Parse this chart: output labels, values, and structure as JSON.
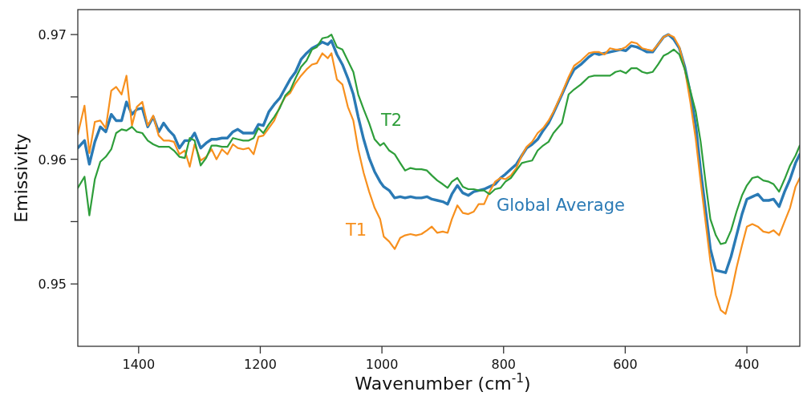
{
  "chart_data": {
    "type": "line",
    "xlabel": "Wavenumber (cm$^{-1}$)",
    "ylabel": "Emissivity",
    "xlim": [
      1500,
      313
    ],
    "ylim": [
      0.945,
      0.972
    ],
    "xticks": [
      1400,
      1200,
      1000,
      800,
      600,
      400
    ],
    "yticks": [
      0.95,
      {
        "value": 0.955,
        "label": null
      },
      0.96,
      {
        "value": 0.965,
        "label": null
      },
      0.97
    ],
    "grid": false,
    "legend": false,
    "marker": "none",
    "line_style": "solid",
    "x": [
      1500,
      1489,
      1481,
      1472,
      1463,
      1454,
      1445,
      1437,
      1428,
      1420,
      1411,
      1403,
      1394,
      1385,
      1376,
      1367,
      1359,
      1350,
      1342,
      1333,
      1324,
      1316,
      1308,
      1298,
      1289,
      1280,
      1272,
      1263,
      1254,
      1245,
      1237,
      1228,
      1219,
      1211,
      1203,
      1195,
      1186,
      1177,
      1168,
      1159,
      1151,
      1142,
      1133,
      1124,
      1115,
      1107,
      1098,
      1089,
      1083,
      1074,
      1065,
      1056,
      1047,
      1039,
      1030,
      1021,
      1012,
      1003,
      997,
      988,
      979,
      970,
      962,
      953,
      944,
      935,
      926,
      918,
      909,
      900,
      892,
      885,
      876,
      867,
      858,
      849,
      841,
      832,
      823,
      814,
      805,
      797,
      788,
      779,
      770,
      762,
      753,
      744,
      735,
      726,
      718,
      704,
      693,
      684,
      673,
      660,
      651,
      643,
      634,
      625,
      616,
      608,
      599,
      590,
      581,
      572,
      564,
      555,
      546,
      537,
      529,
      520,
      511,
      502,
      493,
      484,
      476,
      467,
      460,
      451,
      443,
      435,
      426,
      417,
      408,
      400,
      391,
      382,
      373,
      364,
      356,
      347,
      338,
      329,
      320,
      313
    ],
    "series": [
      {
        "name": "Global Average",
        "color": "#2a7ab5",
        "values": [
          0.9609,
          0.9615,
          0.9596,
          0.9614,
          0.9626,
          0.9622,
          0.9636,
          0.9631,
          0.9631,
          0.9646,
          0.9636,
          0.964,
          0.9641,
          0.9626,
          0.9634,
          0.9622,
          0.9629,
          0.9623,
          0.9619,
          0.9609,
          0.9615,
          0.9615,
          0.9621,
          0.9609,
          0.9613,
          0.9616,
          0.9616,
          0.9617,
          0.9617,
          0.9622,
          0.9624,
          0.9621,
          0.9621,
          0.9621,
          0.9628,
          0.9627,
          0.9638,
          0.9644,
          0.9649,
          0.9657,
          0.9664,
          0.967,
          0.968,
          0.9685,
          0.9689,
          0.9691,
          0.9694,
          0.9692,
          0.9695,
          0.9684,
          0.9676,
          0.9665,
          0.9652,
          0.9634,
          0.9616,
          0.9601,
          0.959,
          0.9582,
          0.9578,
          0.9575,
          0.9569,
          0.957,
          0.9569,
          0.957,
          0.9569,
          0.9569,
          0.957,
          0.9568,
          0.9567,
          0.9566,
          0.9564,
          0.9572,
          0.9579,
          0.9573,
          0.9571,
          0.9574,
          0.9575,
          0.9576,
          0.9578,
          0.958,
          0.9585,
          0.9588,
          0.9592,
          0.9596,
          0.9603,
          0.9609,
          0.9612,
          0.9616,
          0.9623,
          0.9629,
          0.9637,
          0.9652,
          0.9664,
          0.9672,
          0.9676,
          0.9682,
          0.9685,
          0.9684,
          0.9685,
          0.9686,
          0.9687,
          0.9688,
          0.9687,
          0.9691,
          0.969,
          0.9688,
          0.9686,
          0.9686,
          0.9692,
          0.9698,
          0.97,
          0.9696,
          0.9689,
          0.9674,
          0.9653,
          0.9627,
          0.9591,
          0.9556,
          0.9528,
          0.9511,
          0.951,
          0.9509,
          0.9522,
          0.9539,
          0.9556,
          0.9568,
          0.957,
          0.9572,
          0.9567,
          0.9567,
          0.9568,
          0.9562,
          0.9574,
          0.9584,
          0.9597,
          0.9604
        ]
      },
      {
        "name": "T1",
        "color": "#f7901e",
        "values": [
          0.962,
          0.9643,
          0.9605,
          0.963,
          0.9631,
          0.9625,
          0.9655,
          0.9658,
          0.9652,
          0.9667,
          0.9627,
          0.9642,
          0.9646,
          0.9627,
          0.9635,
          0.9619,
          0.9615,
          0.9615,
          0.9614,
          0.9604,
          0.9607,
          0.9594,
          0.9612,
          0.9599,
          0.9602,
          0.9608,
          0.96,
          0.9608,
          0.9604,
          0.9612,
          0.9609,
          0.9608,
          0.9609,
          0.9604,
          0.9618,
          0.9619,
          0.9625,
          0.9631,
          0.9642,
          0.965,
          0.9653,
          0.9661,
          0.9667,
          0.9672,
          0.9676,
          0.9677,
          0.9685,
          0.9681,
          0.9685,
          0.9664,
          0.966,
          0.9642,
          0.9631,
          0.9608,
          0.9589,
          0.9574,
          0.9561,
          0.9552,
          0.9538,
          0.9534,
          0.9528,
          0.9537,
          0.9539,
          0.954,
          0.9539,
          0.954,
          0.9543,
          0.9546,
          0.9541,
          0.9542,
          0.9541,
          0.9552,
          0.9563,
          0.9557,
          0.9556,
          0.9558,
          0.9564,
          0.9564,
          0.9574,
          0.9582,
          0.9585,
          0.9584,
          0.9587,
          0.9593,
          0.9603,
          0.961,
          0.9614,
          0.9621,
          0.9625,
          0.9631,
          0.9638,
          0.9653,
          0.9666,
          0.9675,
          0.9679,
          0.9685,
          0.9686,
          0.9686,
          0.9684,
          0.9689,
          0.9688,
          0.9688,
          0.969,
          0.9694,
          0.9693,
          0.9689,
          0.9688,
          0.9687,
          0.9692,
          0.9698,
          0.97,
          0.9698,
          0.969,
          0.9672,
          0.9646,
          0.9616,
          0.9582,
          0.9546,
          0.9518,
          0.9491,
          0.9479,
          0.9476,
          0.9492,
          0.9513,
          0.9531,
          0.9546,
          0.9548,
          0.9546,
          0.9542,
          0.9541,
          0.9543,
          0.9539,
          0.955,
          0.9561,
          0.9578,
          0.9585
        ]
      },
      {
        "name": "T2",
        "color": "#2e9e3a",
        "values": [
          0.9577,
          0.9586,
          0.9555,
          0.9584,
          0.9598,
          0.9602,
          0.9608,
          0.9621,
          0.9624,
          0.9623,
          0.9626,
          0.9622,
          0.9621,
          0.9615,
          0.9612,
          0.961,
          0.961,
          0.961,
          0.9607,
          0.9602,
          0.9601,
          0.9617,
          0.9615,
          0.9595,
          0.9601,
          0.9611,
          0.9611,
          0.961,
          0.961,
          0.9617,
          0.9616,
          0.9615,
          0.9615,
          0.9617,
          0.9625,
          0.9621,
          0.9628,
          0.9634,
          0.9641,
          0.9651,
          0.9655,
          0.9665,
          0.9674,
          0.9679,
          0.9688,
          0.969,
          0.9697,
          0.9698,
          0.97,
          0.969,
          0.9688,
          0.9679,
          0.967,
          0.9652,
          0.964,
          0.9629,
          0.9616,
          0.9611,
          0.9613,
          0.9607,
          0.9604,
          0.9597,
          0.9591,
          0.9593,
          0.9592,
          0.9592,
          0.9591,
          0.9587,
          0.9583,
          0.958,
          0.9577,
          0.9582,
          0.9585,
          0.9578,
          0.9576,
          0.9576,
          0.9575,
          0.9575,
          0.9572,
          0.9576,
          0.9577,
          0.9582,
          0.9585,
          0.9591,
          0.9597,
          0.9598,
          0.9599,
          0.9607,
          0.9611,
          0.9614,
          0.9621,
          0.9629,
          0.9652,
          0.9656,
          0.966,
          0.9666,
          0.9667,
          0.9667,
          0.9667,
          0.9667,
          0.967,
          0.9671,
          0.9669,
          0.9673,
          0.9673,
          0.967,
          0.9669,
          0.967,
          0.9676,
          0.9683,
          0.9685,
          0.9688,
          0.9684,
          0.9672,
          0.9655,
          0.9638,
          0.9614,
          0.9578,
          0.9552,
          0.9539,
          0.9532,
          0.9533,
          0.9543,
          0.9558,
          0.9571,
          0.9579,
          0.9585,
          0.9586,
          0.9583,
          0.9582,
          0.958,
          0.9574,
          0.9584,
          0.9595,
          0.9603,
          0.9611
        ]
      }
    ]
  }
}
